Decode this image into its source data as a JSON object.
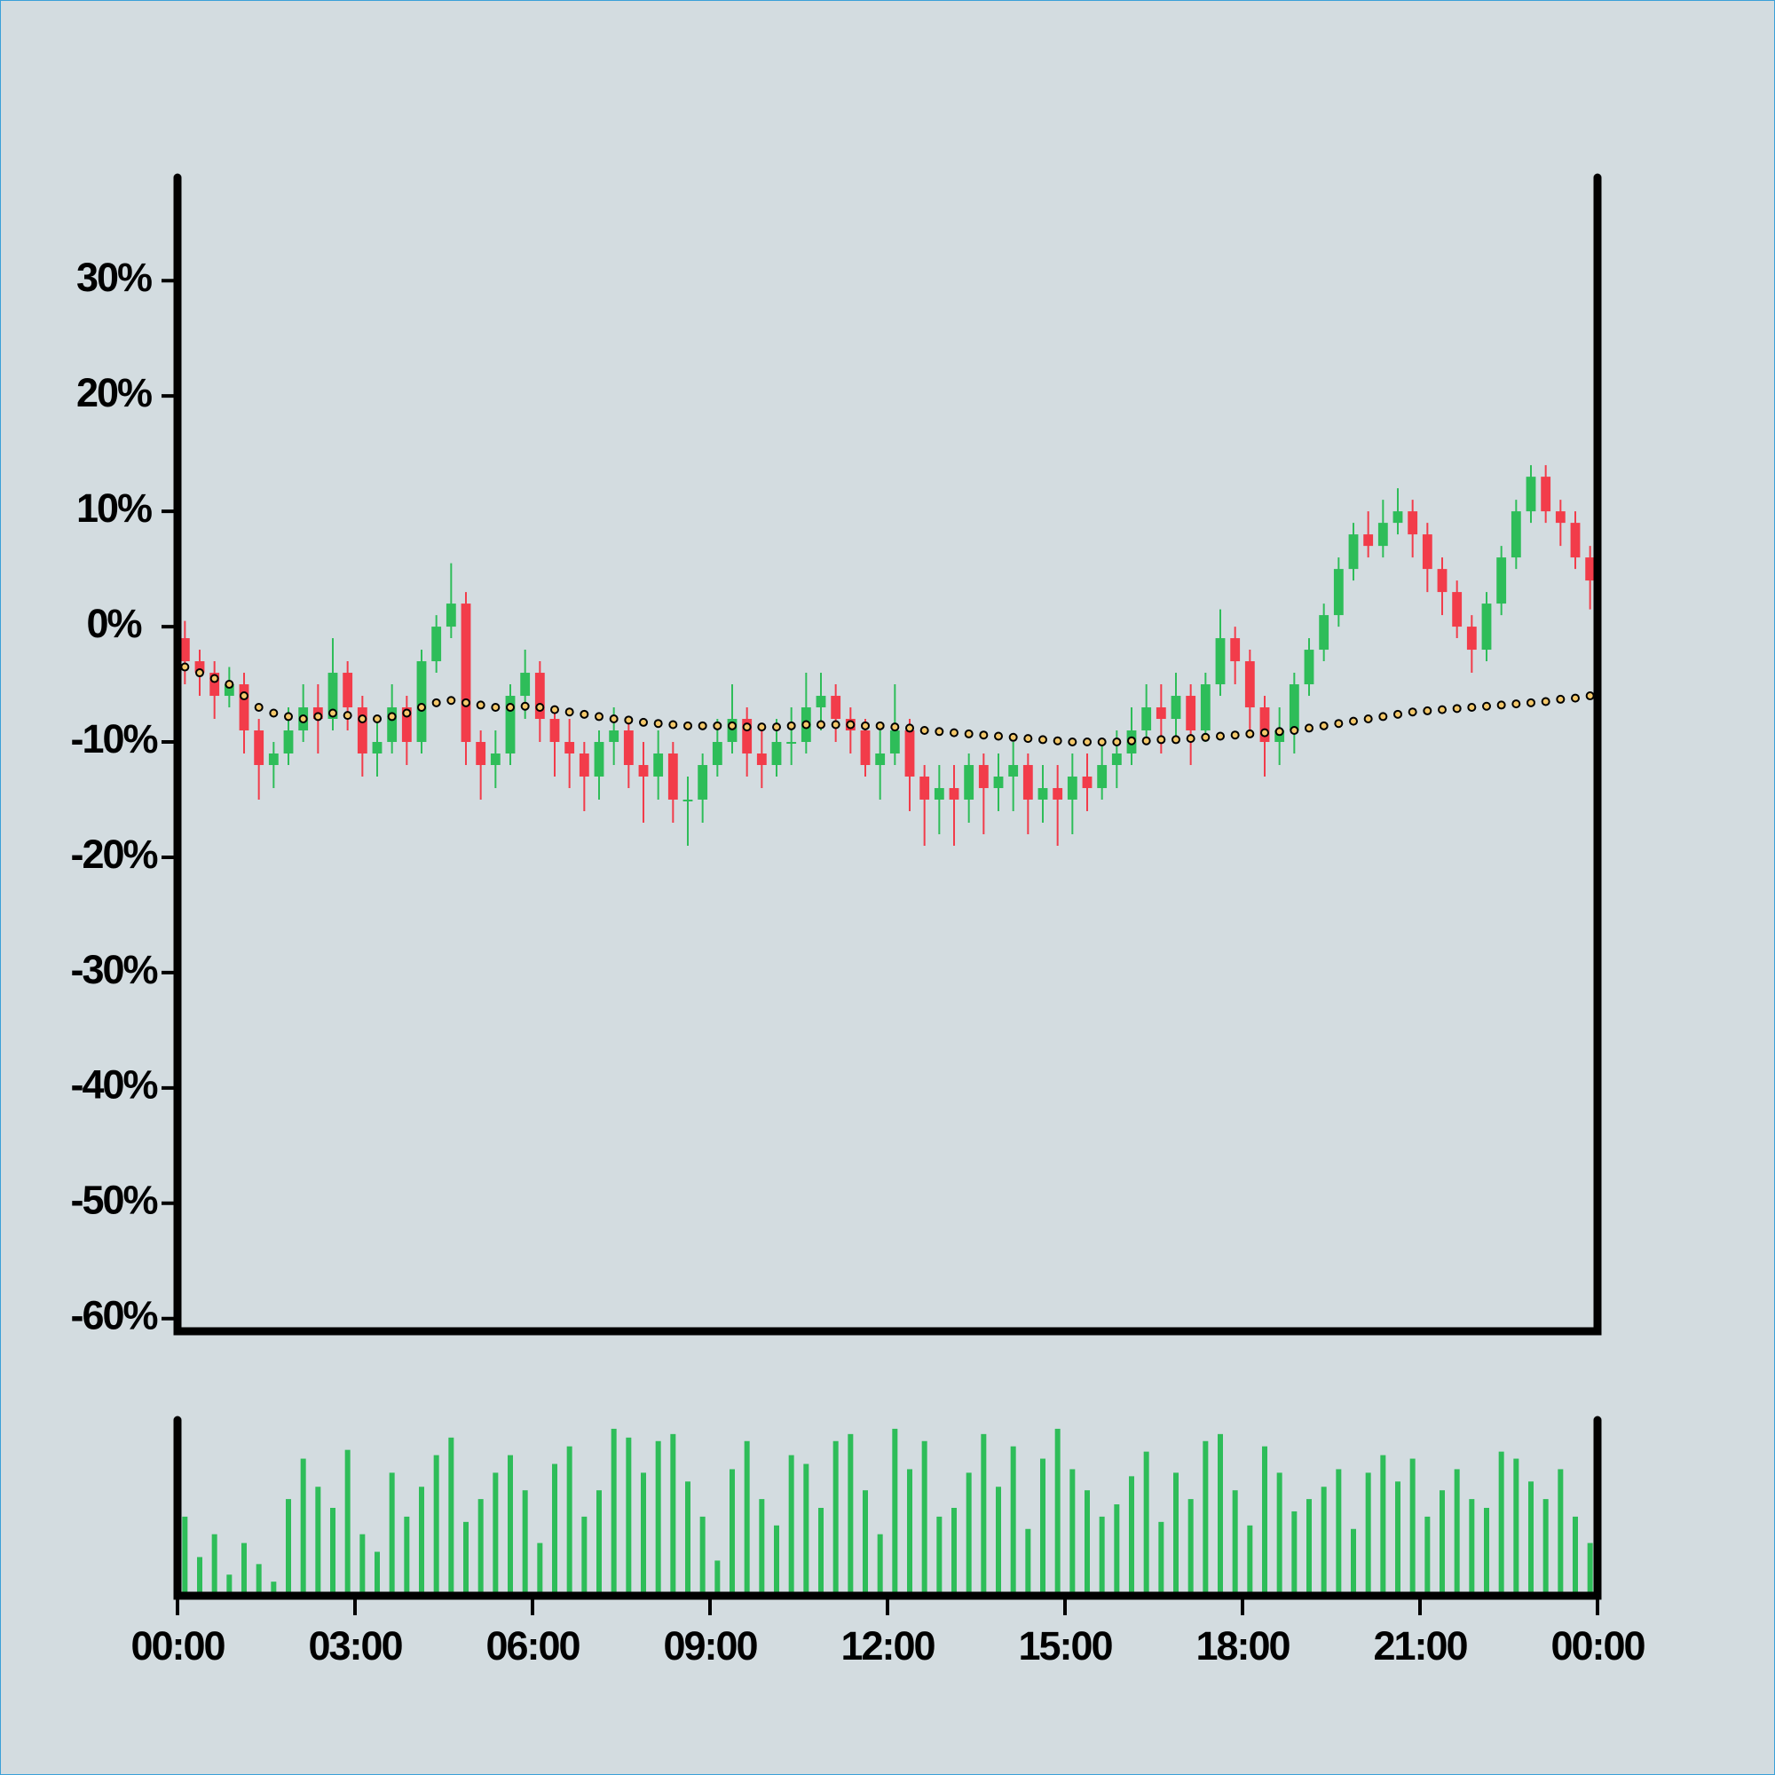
{
  "chart_data": {
    "type": "candlestick",
    "background": "#d3dce0",
    "up_color": "#2ebd59",
    "down_color": "#f23c4a",
    "volume_color": "#2ebd59",
    "ma_color": "#f5c96b",
    "ylim": [
      -61.1,
      39.1
    ],
    "yticks": [
      {
        "value": 30,
        "label": "30%"
      },
      {
        "value": 20,
        "label": "20%"
      },
      {
        "value": 10,
        "label": "10%"
      },
      {
        "value": 0,
        "label": "0%"
      },
      {
        "value": -10,
        "label": "-10%"
      },
      {
        "value": -20,
        "label": "-20%"
      },
      {
        "value": -30,
        "label": "-30%"
      },
      {
        "value": -40,
        "label": "-40%"
      },
      {
        "value": -50,
        "label": "-50%"
      },
      {
        "value": -60,
        "label": "-60%"
      }
    ],
    "xlim": [
      0,
      24
    ],
    "xticks": [
      {
        "value": 0,
        "label": "00:00"
      },
      {
        "value": 3,
        "label": "03:00"
      },
      {
        "value": 6,
        "label": "06:00"
      },
      {
        "value": 9,
        "label": "09:00"
      },
      {
        "value": 12,
        "label": "12:00"
      },
      {
        "value": 15,
        "label": "15:00"
      },
      {
        "value": 18,
        "label": "18:00"
      },
      {
        "value": 21,
        "label": "21:00"
      },
      {
        "value": 24,
        "label": "00:00"
      }
    ],
    "volume_lim": [
      0,
      100
    ],
    "x": [
      0.125,
      0.375,
      0.625,
      0.875,
      1.125,
      1.375,
      1.625,
      1.875,
      2.125,
      2.375,
      2.625,
      2.875,
      3.125,
      3.375,
      3.625,
      3.875,
      4.125,
      4.375,
      4.625,
      4.875,
      5.125,
      5.375,
      5.625,
      5.875,
      6.125,
      6.375,
      6.625,
      6.875,
      7.125,
      7.375,
      7.625,
      7.875,
      8.125,
      8.375,
      8.625,
      8.875,
      9.125,
      9.375,
      9.625,
      9.875,
      10.125,
      10.375,
      10.625,
      10.875,
      11.125,
      11.375,
      11.625,
      11.875,
      12.125,
      12.375,
      12.625,
      12.875,
      13.125,
      13.375,
      13.625,
      13.875,
      14.125,
      14.375,
      14.625,
      14.875,
      15.125,
      15.375,
      15.625,
      15.875,
      16.125,
      16.375,
      16.625,
      16.875,
      17.125,
      17.375,
      17.625,
      17.875,
      18.125,
      18.375,
      18.625,
      18.875,
      19.125,
      19.375,
      19.625,
      19.875,
      20.125,
      20.375,
      20.625,
      20.875,
      21.125,
      21.375,
      21.625,
      21.875,
      22.125,
      22.375,
      22.625,
      22.875,
      23.125,
      23.375,
      23.625,
      23.875
    ],
    "open": [
      -1,
      -3,
      -4,
      -6,
      -5,
      -9,
      -12,
      -11,
      -9,
      -7,
      -8,
      -4,
      -7,
      -11,
      -10,
      -7,
      -10,
      -3,
      0,
      2,
      -10,
      -12,
      -11,
      -6,
      -4,
      -8,
      -10,
      -11,
      -13,
      -10,
      -9,
      -12,
      -13,
      -11,
      -15,
      -15,
      -12,
      -10,
      -8,
      -11,
      -12,
      -10,
      -10,
      -7,
      -6,
      -8,
      -9,
      -12,
      -11,
      -9,
      -13,
      -15,
      -14,
      -15,
      -12,
      -14,
      -13,
      -12,
      -15,
      -14,
      -15,
      -13,
      -14,
      -12,
      -11,
      -9,
      -7,
      -8,
      -6,
      -9,
      -5,
      -1,
      -3,
      -7,
      -10,
      -9,
      -5,
      -2,
      1,
      5,
      8,
      7,
      9,
      10,
      8,
      5,
      3,
      0,
      -2,
      2,
      6,
      10,
      13,
      10,
      9,
      6
    ],
    "high": [
      0.5,
      -2,
      -3,
      -3.5,
      -4,
      -8,
      -10,
      -7,
      -5,
      -5,
      -1,
      -3,
      -6,
      -8,
      -5,
      -6,
      -2,
      1,
      5.5,
      3,
      -9,
      -9,
      -5,
      -2,
      -3,
      -7,
      -8,
      -10,
      -9,
      -7,
      -8,
      -10,
      -9,
      -10,
      -13,
      -11,
      -8,
      -5,
      -7,
      -9,
      -8,
      -7,
      -4,
      -4,
      -5,
      -7,
      -8,
      -9,
      -5,
      -8,
      -12,
      -12,
      -12,
      -11,
      -11,
      -11,
      -10,
      -11,
      -12,
      -12,
      -11,
      -11,
      -10,
      -9,
      -7,
      -5,
      -5,
      -4,
      -5,
      -4,
      1.5,
      0,
      -2,
      -6,
      -7,
      -4,
      -1,
      2,
      6,
      9,
      10,
      11,
      12,
      11,
      9,
      6,
      4,
      1,
      3,
      7,
      11,
      14,
      14,
      11,
      10,
      7
    ],
    "low": [
      -5,
      -6,
      -8,
      -7,
      -11,
      -15,
      -14,
      -12,
      -10,
      -11,
      -9,
      -9,
      -13,
      -13,
      -11,
      -12,
      -11,
      -4,
      -1,
      -12,
      -15,
      -14,
      -12,
      -8,
      -10,
      -13,
      -14,
      -16,
      -15,
      -12,
      -14,
      -17,
      -15,
      -17,
      -19,
      -17,
      -13,
      -11,
      -13,
      -14,
      -13,
      -12,
      -11,
      -9,
      -10,
      -11,
      -13,
      -15,
      -12,
      -16,
      -19,
      -18,
      -19,
      -17,
      -18,
      -16,
      -16,
      -18,
      -17,
      -19,
      -18,
      -16,
      -15,
      -14,
      -12,
      -10,
      -11,
      -10,
      -12,
      -10,
      -6,
      -5,
      -9,
      -13,
      -12,
      -11,
      -6,
      -3,
      0,
      4,
      6,
      6,
      8,
      6,
      3,
      1,
      -1,
      -4,
      -3,
      1,
      5,
      9,
      9,
      7,
      5,
      1.5
    ],
    "close": [
      -3,
      -4,
      -6,
      -5,
      -9,
      -12,
      -11,
      -9,
      -7,
      -8,
      -4,
      -7,
      -11,
      -10,
      -7,
      -10,
      -3,
      0,
      2,
      -10,
      -12,
      -11,
      -6,
      -4,
      -8,
      -10,
      -11,
      -13,
      -10,
      -9,
      -12,
      -13,
      -11,
      -15,
      -15,
      -12,
      -10,
      -8,
      -11,
      -12,
      -10,
      -10,
      -7,
      -6,
      -8,
      -9,
      -12,
      -11,
      -9,
      -13,
      -15,
      -14,
      -15,
      -12,
      -14,
      -13,
      -12,
      -15,
      -14,
      -15,
      -13,
      -14,
      -12,
      -11,
      -9,
      -7,
      -8,
      -6,
      -9,
      -5,
      -1,
      -3,
      -7,
      -10,
      -9,
      -5,
      -2,
      1,
      5,
      8,
      7,
      9,
      10,
      8,
      5,
      3,
      0,
      -2,
      2,
      6,
      10,
      13,
      10,
      9,
      6,
      4
    ],
    "volume": [
      45,
      22,
      35,
      12,
      30,
      18,
      8,
      55,
      78,
      62,
      50,
      83,
      35,
      25,
      70,
      45,
      62,
      80,
      90,
      42,
      55,
      70,
      80,
      60,
      30,
      75,
      85,
      45,
      60,
      95,
      90,
      70,
      88,
      92,
      65,
      45,
      20,
      72,
      88,
      55,
      40,
      80,
      75,
      50,
      88,
      92,
      60,
      35,
      95,
      72,
      88,
      45,
      50,
      70,
      92,
      62,
      85,
      38,
      78,
      95,
      72,
      60,
      45,
      52,
      68,
      82,
      42,
      70,
      55,
      88,
      92,
      60,
      40,
      85,
      70,
      48,
      55,
      62,
      72,
      38,
      70,
      80,
      65,
      78,
      45,
      60,
      72,
      55,
      50,
      82,
      78,
      65,
      55,
      72,
      45,
      30
    ],
    "moving_average": [
      -3.5,
      -4,
      -4.5,
      -5,
      -6,
      -7,
      -7.5,
      -7.8,
      -8,
      -7.8,
      -7.5,
      -7.7,
      -8,
      -8,
      -7.8,
      -7.5,
      -7,
      -6.6,
      -6.4,
      -6.6,
      -6.8,
      -7,
      -7,
      -6.9,
      -7,
      -7.2,
      -7.4,
      -7.6,
      -7.8,
      -8,
      -8.1,
      -8.3,
      -8.4,
      -8.5,
      -8.6,
      -8.6,
      -8.6,
      -8.6,
      -8.7,
      -8.7,
      -8.7,
      -8.6,
      -8.5,
      -8.5,
      -8.5,
      -8.5,
      -8.6,
      -8.6,
      -8.7,
      -8.8,
      -9,
      -9.1,
      -9.2,
      -9.3,
      -9.4,
      -9.5,
      -9.6,
      -9.7,
      -9.8,
      -9.9,
      -10,
      -10,
      -10,
      -10,
      -9.9,
      -9.9,
      -9.8,
      -9.8,
      -9.7,
      -9.6,
      -9.5,
      -9.4,
      -9.3,
      -9.2,
      -9.1,
      -9,
      -8.8,
      -8.6,
      -8.4,
      -8.2,
      -8,
      -7.8,
      -7.6,
      -7.4,
      -7.3,
      -7.2,
      -7.1,
      -7,
      -6.9,
      -6.8,
      -6.7,
      -6.6,
      -6.5,
      -6.3,
      -6.2,
      -6
    ]
  }
}
